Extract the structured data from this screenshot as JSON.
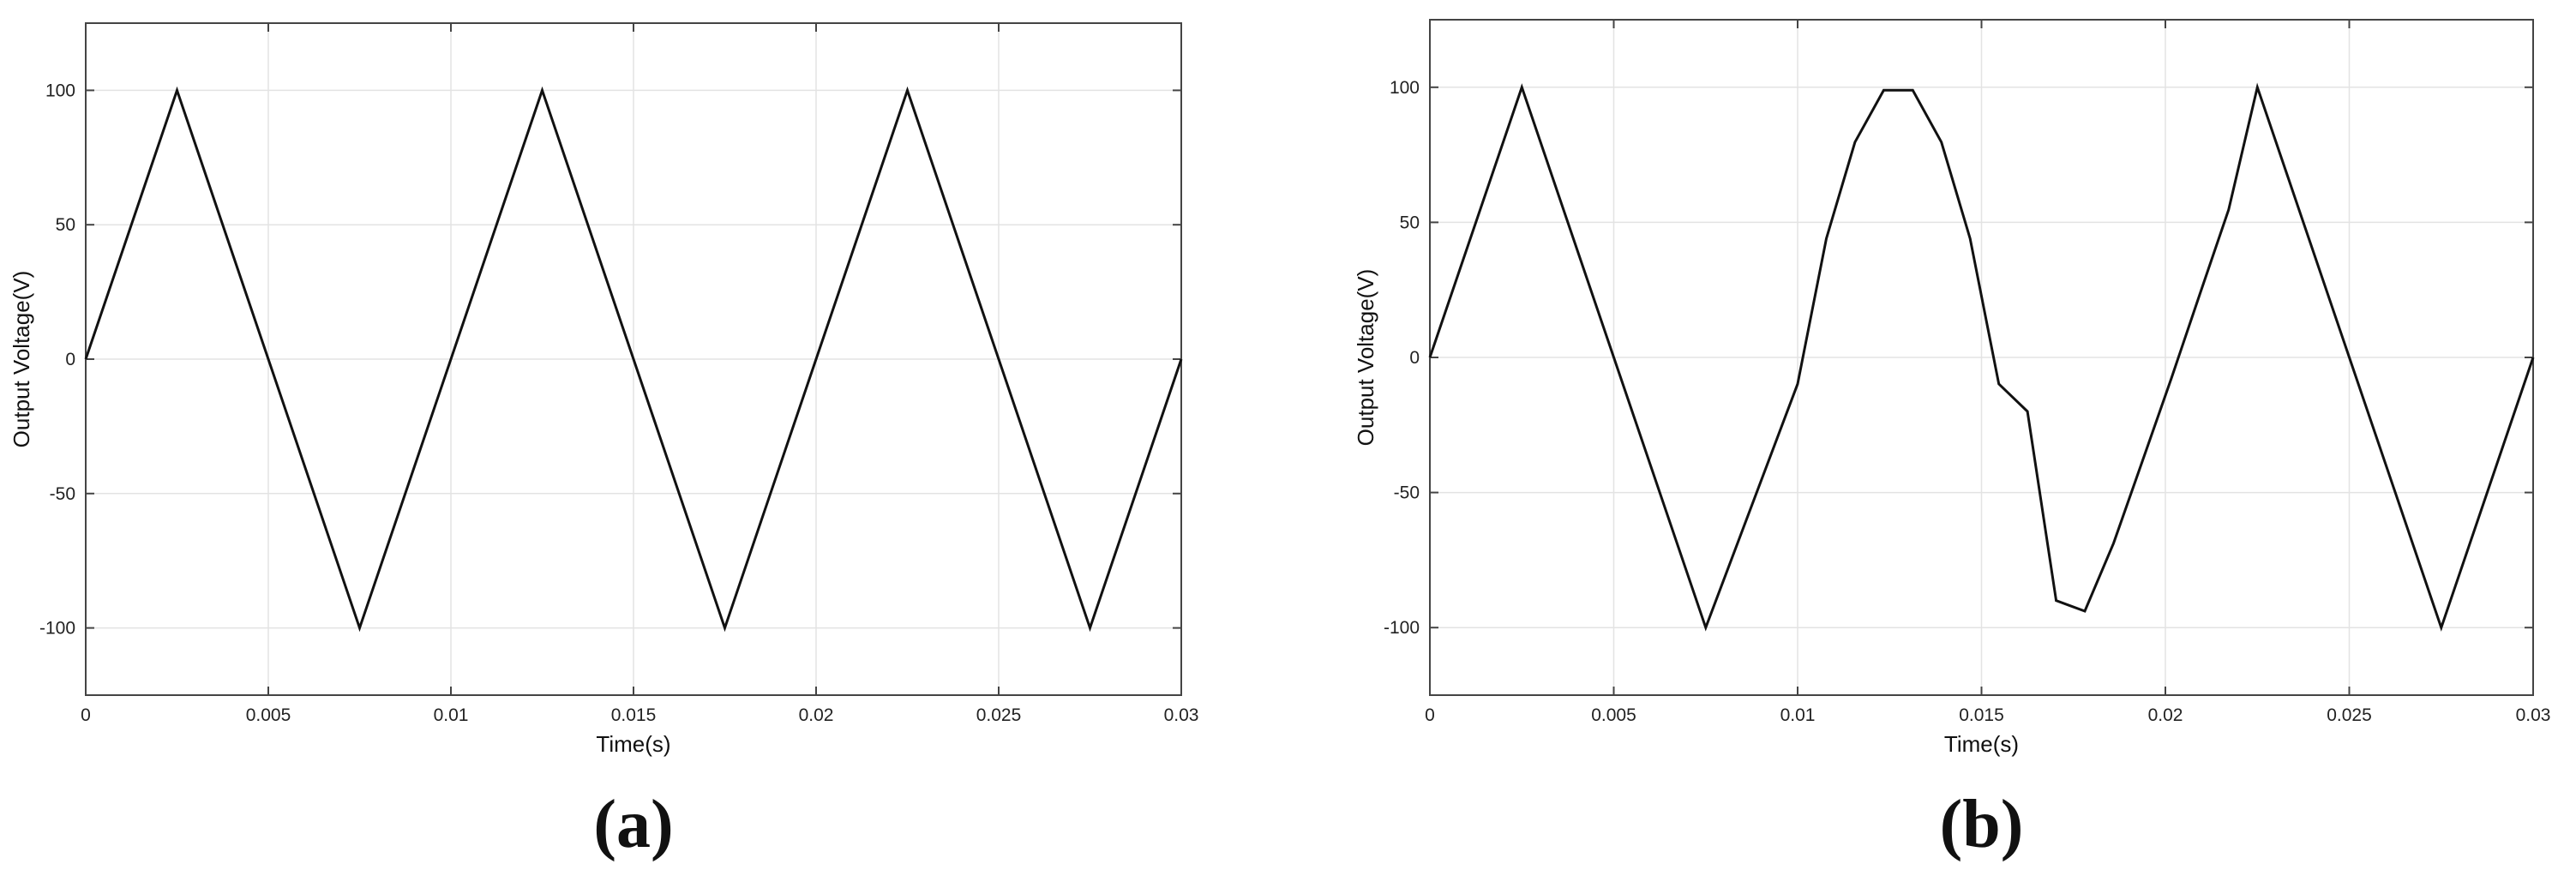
{
  "chart_data": [
    {
      "type": "line",
      "panel_label": "(a)",
      "xlabel": "Time(s)",
      "ylabel": "Output Voltage(V)",
      "xlim": [
        0,
        0.03
      ],
      "ylim": [
        -125,
        125
      ],
      "xticks": [
        0,
        0.005,
        0.01,
        0.015,
        0.02,
        0.025,
        0.03
      ],
      "xtick_labels": [
        "0",
        "0.005",
        "0.01",
        "0.015",
        "0.02",
        "0.025",
        "0.03"
      ],
      "yticks": [
        -100,
        -50,
        0,
        50,
        100
      ],
      "ytick_labels": [
        "-100",
        "-50",
        "0",
        "50",
        "100"
      ],
      "grid": true,
      "line_color": "#111111",
      "series": [
        {
          "x": [
            0,
            0.0025,
            0.0075,
            0.0125,
            0.0175,
            0.0225,
            0.0275,
            0.03
          ],
          "y": [
            0,
            100,
            -100,
            100,
            -100,
            100,
            -100,
            0
          ]
        }
      ]
    },
    {
      "type": "line",
      "panel_label": "(b)",
      "xlabel": "Time(s)",
      "ylabel": "Output Voltage(V)",
      "xlim": [
        0,
        0.03
      ],
      "ylim": [
        -125,
        125
      ],
      "xticks": [
        0,
        0.005,
        0.01,
        0.015,
        0.02,
        0.025,
        0.03
      ],
      "xtick_labels": [
        "0",
        "0.005",
        "0.01",
        "0.015",
        "0.02",
        "0.025",
        "0.03"
      ],
      "yticks": [
        -100,
        -50,
        0,
        50,
        100
      ],
      "ytick_labels": [
        "-100",
        "-50",
        "0",
        "50",
        "100"
      ],
      "grid": true,
      "line_color": "#111111",
      "series": [
        {
          "x": [
            0,
            0.0025,
            0.0075,
            0.01,
            0.01078,
            0.01156,
            0.01234,
            0.01313,
            0.01391,
            0.01469,
            0.01547,
            0.01625,
            0.01703,
            0.01781,
            0.01859,
            0.01938,
            0.02016,
            0.02094,
            0.02172,
            0.0225,
            0.0275,
            0.03
          ],
          "y": [
            0,
            100,
            -100,
            -9.8,
            44.0,
            79.7,
            98.9,
            98.9,
            79.7,
            44.0,
            -9.8,
            -20.0,
            -90.0,
            -93.9,
            -68.8,
            -38.2,
            -7.8,
            23.5,
            54.7,
            100,
            -100,
            0
          ]
        }
      ]
    }
  ]
}
